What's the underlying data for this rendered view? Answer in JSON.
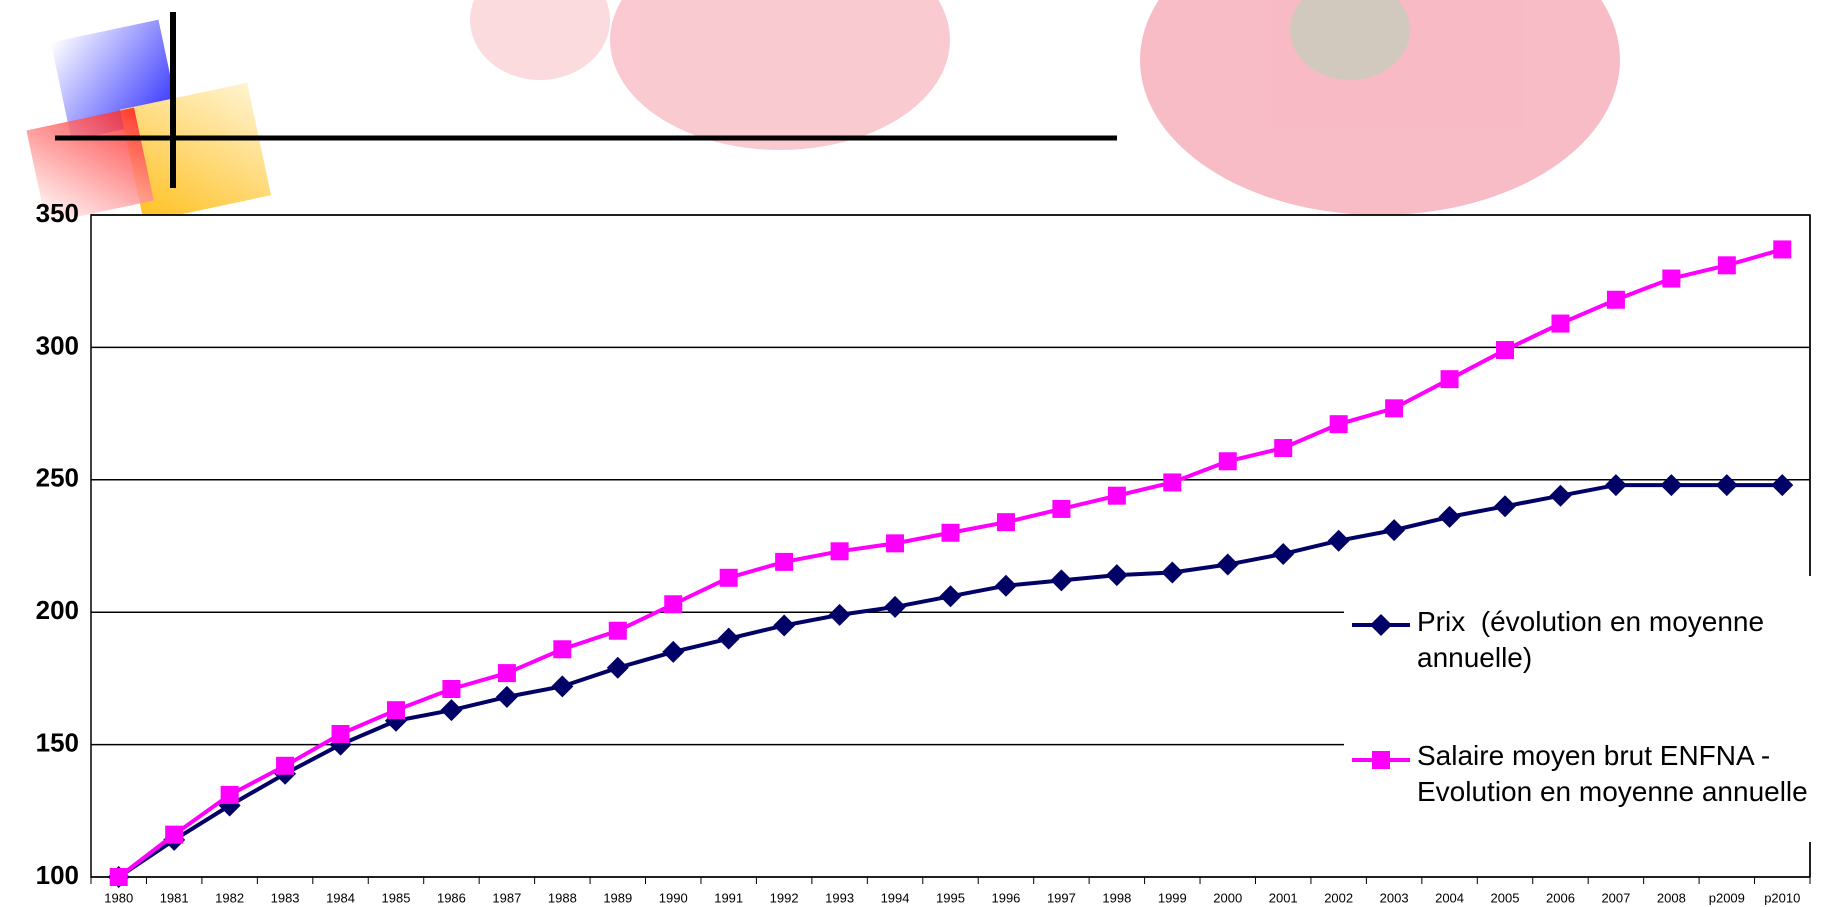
{
  "chart_data": {
    "type": "line",
    "categories": [
      "1980",
      "1981",
      "1982",
      "1983",
      "1984",
      "1985",
      "1986",
      "1987",
      "1988",
      "1989",
      "1990",
      "1991",
      "1992",
      "1993",
      "1994",
      "1995",
      "1996",
      "1997",
      "1998",
      "1999",
      "2000",
      "2001",
      "2002",
      "2003",
      "2004",
      "2005",
      "2006",
      "2007",
      "2008",
      "p2009",
      "p2010"
    ],
    "series": [
      {
        "name": "Prix  (évolution en moyenne annuelle)",
        "color": "#000066",
        "marker": "diamond",
        "values": [
          100,
          114,
          127,
          139,
          150,
          159,
          163,
          168,
          172,
          179,
          185,
          190,
          195,
          199,
          202,
          206,
          210,
          212,
          214,
          215,
          218,
          222,
          227,
          231,
          236,
          240,
          244,
          248,
          248,
          248,
          248
        ]
      },
      {
        "name": "Salaire moyen brut ENFNA - Evolution en moyenne annuelle",
        "color": "#ff00ff",
        "marker": "square",
        "values": [
          100,
          116,
          131,
          142,
          154,
          163,
          171,
          177,
          186,
          193,
          203,
          213,
          219,
          223,
          226,
          230,
          234,
          239,
          244,
          249,
          257,
          262,
          271,
          277,
          288,
          299,
          309,
          318,
          326,
          331,
          337
        ]
      }
    ],
    "ylim": [
      100,
      350
    ],
    "yticks": [
      100,
      150,
      200,
      250,
      300,
      350
    ],
    "grid": true,
    "legend": "right"
  }
}
